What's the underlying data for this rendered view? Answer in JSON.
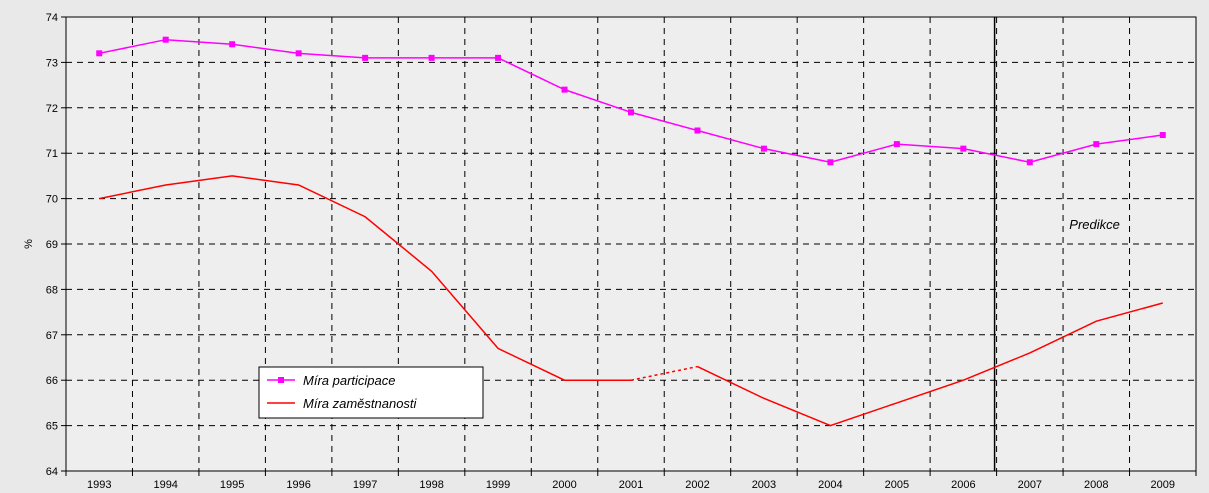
{
  "chart_data": {
    "type": "line",
    "title": "",
    "xlabel": "",
    "ylabel": "%",
    "ylim": [
      64,
      74
    ],
    "yticks": [
      "64",
      "65",
      "66",
      "67",
      "68",
      "69",
      "70",
      "71",
      "72",
      "73",
      "74"
    ],
    "categories": [
      "1993",
      "1994",
      "1995",
      "1996",
      "1997",
      "1998",
      "1999",
      "2000",
      "2001",
      "2002",
      "2003",
      "2004",
      "2005",
      "2006",
      "2007",
      "2008",
      "2009"
    ],
    "grid": true,
    "legend_position": "bottom-left",
    "series": [
      {
        "name": "Míra participace",
        "color": "#ff00ff",
        "marker": "square",
        "values": [
          73.2,
          73.5,
          73.4,
          73.2,
          73.1,
          73.1,
          73.1,
          72.4,
          71.9,
          71.5,
          71.1,
          70.8,
          71.2,
          71.1,
          70.8,
          71.2,
          71.4
        ]
      },
      {
        "name": "Míra zaměstnanosti",
        "color": "#ff0000",
        "marker": "none",
        "values": [
          70.0,
          70.3,
          70.5,
          70.3,
          69.6,
          68.4,
          66.7,
          66.0,
          66.0,
          66.3,
          65.6,
          65.0,
          65.5,
          66.0,
          66.6,
          67.3,
          67.7
        ],
        "dashed_segment": [
          "2001",
          "2002"
        ]
      }
    ],
    "annotations": [
      {
        "text": "Predikce",
        "after_category": "2006"
      }
    ]
  }
}
